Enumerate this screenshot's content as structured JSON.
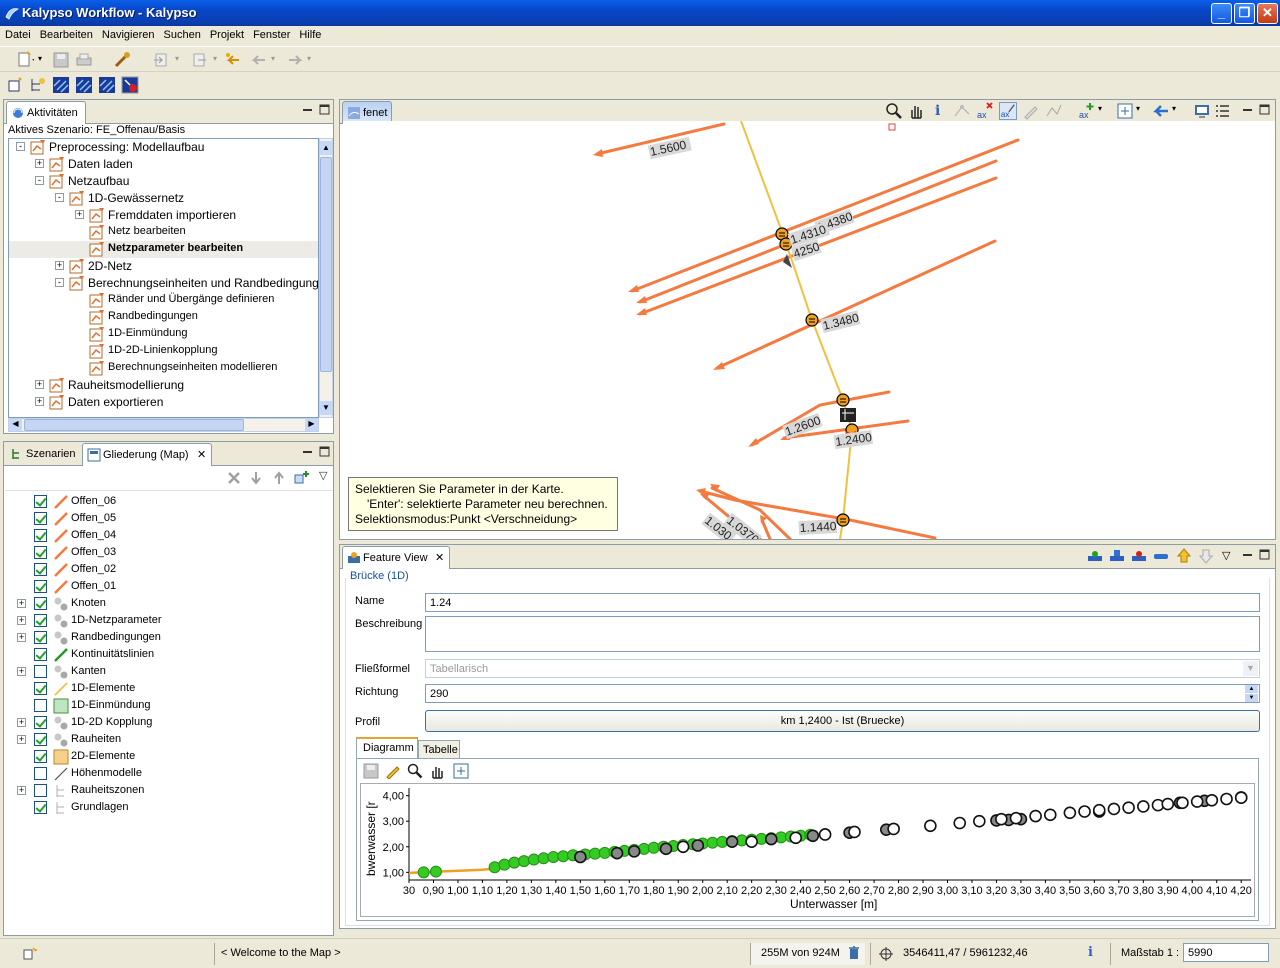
{
  "window": {
    "title": "Kalypso Workflow - Kalypso",
    "minimize": "_",
    "maximize": "❐",
    "close": "✕"
  },
  "menu": [
    "Datei",
    "Bearbeiten",
    "Navigieren",
    "Suchen",
    "Projekt",
    "Fenster",
    "Hilfe"
  ],
  "activities": {
    "tab_label": "Aktivitäten",
    "scenario_label": "Aktives Szenario: FE_Offenau/Basis",
    "tree": [
      {
        "label": "Preprocessing: Modellaufbau",
        "level": 0,
        "expander": "-",
        "bold": false
      },
      {
        "label": "Daten laden",
        "level": 1,
        "expander": "+",
        "bold": false
      },
      {
        "label": "Netzaufbau",
        "level": 1,
        "expander": "-",
        "bold": false
      },
      {
        "label": "1D-Gewässernetz",
        "level": 2,
        "expander": "-",
        "bold": false
      },
      {
        "label": "Fremddaten importieren",
        "level": 3,
        "expander": "+",
        "bold": false
      },
      {
        "label": "Netz bearbeiten",
        "level": 3,
        "expander": "",
        "bold": false
      },
      {
        "label": "Netzparameter bearbeiten",
        "level": 3,
        "expander": "",
        "bold": true
      },
      {
        "label": "2D-Netz",
        "level": 2,
        "expander": "+",
        "bold": false
      },
      {
        "label": "Berechnungseinheiten und Randbedingungen",
        "level": 2,
        "expander": "-",
        "bold": false
      },
      {
        "label": "Ränder und Übergänge definieren",
        "level": 3,
        "expander": "",
        "bold": false
      },
      {
        "label": "Randbedingungen",
        "level": 3,
        "expander": "",
        "bold": false
      },
      {
        "label": "1D-Einmündung",
        "level": 3,
        "expander": "",
        "bold": false
      },
      {
        "label": "1D-2D-Linienkopplung",
        "level": 3,
        "expander": "",
        "bold": false
      },
      {
        "label": "Berechnungseinheiten modellieren",
        "level": 3,
        "expander": "",
        "bold": false
      },
      {
        "label": "Rauheitsmodellierung",
        "level": 1,
        "expander": "+",
        "bold": false
      },
      {
        "label": "Daten exportieren",
        "level": 1,
        "expander": "+",
        "bold": false
      }
    ]
  },
  "outline": {
    "tab_scenarios": "Szenarien",
    "tab_outline": "Gliederung (Map)",
    "layers": [
      {
        "label": "Offen_06",
        "checked": true,
        "expander": "",
        "icon": "orange-line-icon"
      },
      {
        "label": "Offen_05",
        "checked": true,
        "expander": "",
        "icon": "orange-line-icon"
      },
      {
        "label": "Offen_04",
        "checked": true,
        "expander": "",
        "icon": "orange-line-icon"
      },
      {
        "label": "Offen_03",
        "checked": true,
        "expander": "",
        "icon": "orange-line-icon"
      },
      {
        "label": "Offen_02",
        "checked": true,
        "expander": "",
        "icon": "orange-line-icon"
      },
      {
        "label": "Offen_01",
        "checked": true,
        "expander": "",
        "icon": "orange-line-icon"
      },
      {
        "label": "Knoten",
        "checked": true,
        "expander": "+",
        "icon": "node-icon"
      },
      {
        "label": "1D-Netzparameter",
        "checked": true,
        "expander": "+",
        "icon": "node-icon"
      },
      {
        "label": "Randbedingungen",
        "checked": true,
        "expander": "+",
        "icon": "node-icon"
      },
      {
        "label": "Kontinuitätslinien",
        "checked": true,
        "expander": "",
        "icon": "green-line-icon"
      },
      {
        "label": "Kanten",
        "checked": false,
        "expander": "+",
        "icon": "node-icon"
      },
      {
        "label": "1D-Elemente",
        "checked": true,
        "expander": "",
        "icon": "yellow-line-icon"
      },
      {
        "label": "1D-Einmündung",
        "checked": false,
        "expander": "",
        "icon": "green-square-icon"
      },
      {
        "label": "1D-2D Kopplung",
        "checked": true,
        "expander": "+",
        "icon": "node-icon"
      },
      {
        "label": "Rauheiten",
        "checked": true,
        "expander": "+",
        "icon": "node-icon"
      },
      {
        "label": "2D-Elemente",
        "checked": true,
        "expander": "",
        "icon": "yellow-square-icon"
      },
      {
        "label": "Höhenmodelle",
        "checked": false,
        "expander": "",
        "icon": "gray-line-icon"
      },
      {
        "label": "Rauheitszonen",
        "checked": false,
        "expander": "+",
        "icon": "tree-icon"
      },
      {
        "label": "Grundlagen",
        "checked": true,
        "expander": "",
        "icon": "tree-icon"
      }
    ]
  },
  "map": {
    "tab_label": "fenet",
    "labels": [
      "1.5600",
      "1.4380",
      "1.4310",
      "4250",
      "1.3480",
      "1.2600",
      "1.2400",
      "1.1440",
      "1.0370",
      "1.030"
    ],
    "tooltip_lines": [
      "Selektieren Sie Parameter in der Karte.",
      "'Enter': selektierte Parameter neu berechnen.",
      "Selektionsmodus:Punkt <Verschneidung>"
    ]
  },
  "feature_view": {
    "tab_label": "Feature View",
    "section": "Brücke (1D)",
    "name_label": "Name",
    "name_value": "1.24",
    "desc_label": "Beschreibung",
    "desc_value": "",
    "formula_label": "Fließformel",
    "formula_value": "Tabellarisch",
    "direction_label": "Richtung",
    "direction_value": "290",
    "profile_label": "Profil",
    "profile_value": "km 1,2400 - Ist (Bruecke)",
    "subtab_diagram": "Diagramm",
    "subtab_table": "Tabelle"
  },
  "chart_data": {
    "type": "scatter",
    "title": "",
    "xlabel": "Unterwasser [m]",
    "ylabel": "bwerwasser [r",
    "xlim": [
      0.8,
      4.24
    ],
    "ylim": [
      0.7,
      4.3
    ],
    "x_ticks": [
      "30",
      "0,90",
      "1,00",
      "1,10",
      "1,20",
      "1,30",
      "1,40",
      "1,50",
      "1,60",
      "1,70",
      "1,80",
      "1,90",
      "2,00",
      "2,10",
      "2,20",
      "2,30",
      "2,40",
      "2,50",
      "2,60",
      "2,70",
      "2,80",
      "2,90",
      "3,00",
      "3,10",
      "3,20",
      "3,30",
      "3,40",
      "3,50",
      "3,60",
      "3,70",
      "3,80",
      "3,90",
      "4,00",
      "4,10",
      "4,20"
    ],
    "y_ticks": [
      "1,00",
      "2,00",
      "3,00",
      "4,00"
    ],
    "series": [
      {
        "color": "#f0a020",
        "line": [
          [
            0.8,
            0.98
          ],
          [
            1.1,
            1.1
          ],
          [
            1.2,
            1.2
          ]
        ]
      },
      {
        "color": "#33cc22",
        "x": [
          0.86,
          0.91,
          1.15,
          1.19,
          1.23,
          1.27,
          1.31,
          1.35,
          1.39,
          1.43,
          1.47,
          1.52,
          1.56,
          1.6,
          1.64,
          1.68,
          1.72,
          1.76,
          1.8,
          1.84,
          1.88,
          1.92,
          1.96,
          2.0,
          2.04,
          2.08,
          2.12,
          2.16,
          2.2,
          2.24,
          2.28,
          2.32,
          2.36,
          2.4,
          2.44,
          2.5
        ],
        "y": [
          1.0,
          1.03,
          1.2,
          1.3,
          1.38,
          1.44,
          1.5,
          1.55,
          1.6,
          1.63,
          1.67,
          1.7,
          1.73,
          1.76,
          1.8,
          1.84,
          1.88,
          1.92,
          1.96,
          2.0,
          2.03,
          2.07,
          2.1,
          2.13,
          2.16,
          2.19,
          2.22,
          2.25,
          2.28,
          2.31,
          2.34,
          2.37,
          2.4,
          2.43,
          2.47,
          2.5
        ]
      },
      {
        "color": "#888888",
        "x": [
          1.5,
          1.65,
          1.72,
          1.85,
          1.98,
          2.12,
          2.28,
          2.45,
          2.6,
          2.75,
          3.2,
          3.25,
          3.3,
          3.62,
          3.95,
          4.05,
          4.2
        ],
        "y": [
          1.6,
          1.75,
          1.82,
          1.92,
          2.05,
          2.2,
          2.3,
          2.43,
          2.55,
          2.67,
          3.03,
          3.05,
          3.08,
          3.38,
          3.72,
          3.8,
          3.93
        ]
      },
      {
        "color": "#ffffff",
        "x": [
          1.92,
          2.2,
          2.38,
          2.5,
          2.62,
          2.78,
          2.93,
          3.05,
          3.13,
          3.22,
          3.28,
          3.36,
          3.42,
          3.5,
          3.56,
          3.62,
          3.68,
          3.74,
          3.8,
          3.86,
          3.9,
          3.96,
          4.02,
          4.08,
          4.14,
          4.2
        ],
        "y": [
          2.0,
          2.2,
          2.35,
          2.48,
          2.58,
          2.7,
          2.82,
          2.93,
          3.0,
          3.08,
          3.12,
          3.2,
          3.25,
          3.33,
          3.38,
          3.43,
          3.48,
          3.53,
          3.58,
          3.63,
          3.67,
          3.72,
          3.77,
          3.82,
          3.87,
          3.92
        ]
      }
    ]
  },
  "status": {
    "welcome": "< Welcome to the Map >",
    "memory": "255M von 924M",
    "coords": "3546411,47 / 5961232,46",
    "scale_label": "Maßstab 1 :",
    "scale_value": "5990"
  }
}
